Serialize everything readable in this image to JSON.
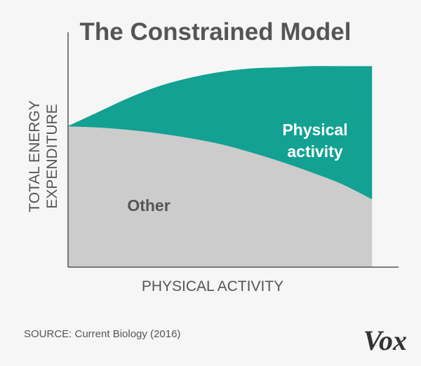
{
  "chart_data": {
    "type": "area",
    "title": "The Constrained Model",
    "xlabel": "PHYSICAL ACTIVITY",
    "ylabel": [
      "TOTAL ENERGY",
      "EXPENDITURE"
    ],
    "xlim": [
      0,
      100
    ],
    "ylim": [
      0,
      100
    ],
    "grid": false,
    "x": [
      0,
      10,
      20,
      30,
      40,
      50,
      60,
      70,
      80,
      90,
      100
    ],
    "series": [
      {
        "name": "Other",
        "values": [
          60,
          59.5,
          58.5,
          57,
          55,
          52.5,
          49,
          45,
          40.5,
          35.5,
          29
        ]
      },
      {
        "name": "Physical activity",
        "values": [
          0,
          6.5,
          13.5,
          20,
          25.5,
          30.5,
          35.5,
          40,
          45,
          50,
          56.5
        ]
      }
    ],
    "series_labels": [
      {
        "lines": [
          "Other"
        ]
      },
      {
        "lines": [
          "Physical",
          "activity"
        ]
      }
    ],
    "colors": {
      "Other": "#cccccc",
      "Physical activity": "#12a192",
      "axis": "#555555",
      "background": "#f6f6f6"
    }
  },
  "source": "SOURCE: Current Biology (2016)",
  "logo": "Vox"
}
